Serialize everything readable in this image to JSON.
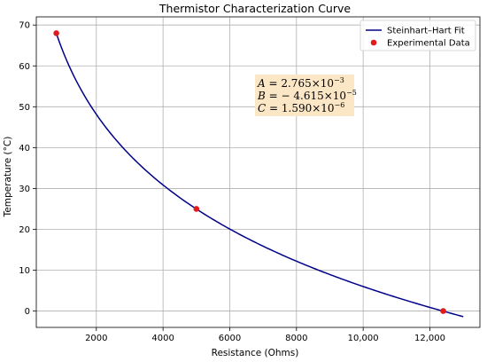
{
  "chart_data": {
    "type": "line",
    "title": "Thermistor Characterization Curve",
    "xlabel": "Resistance (Ohms)",
    "ylabel": "Temperature (°C)",
    "xlim": [
      200,
      13500
    ],
    "ylim": [
      -4,
      72
    ],
    "xticks": [
      2000,
      4000,
      6000,
      8000,
      10000,
      12000
    ],
    "xtick_labels": [
      "2000",
      "4000",
      "6000",
      "8000",
      "10,000",
      "12,000"
    ],
    "yticks": [
      0,
      10,
      20,
      30,
      40,
      50,
      60,
      70
    ],
    "ytick_labels": [
      "0",
      "10",
      "20",
      "30",
      "40",
      "50",
      "60",
      "70"
    ],
    "grid": true,
    "legend_position": "top-right",
    "series": [
      {
        "name": "Steinhart–Hart Fit",
        "kind": "line",
        "color": "#00008b",
        "model": "steinhart-hart",
        "coefficients": {
          "A": 0.002765,
          "B": -4.615e-05,
          "C": 1.59e-06
        },
        "x_range": [
          800,
          13000
        ]
      },
      {
        "name": "Experimental Data",
        "kind": "scatter",
        "color": "#e31a1c",
        "x": [
          800,
          5000,
          12400
        ],
        "y": [
          68,
          25,
          0
        ]
      }
    ],
    "annotation": {
      "lines": [
        {
          "lhs": "A",
          "mantissa": "= 2.765×10",
          "exponent": "−3"
        },
        {
          "lhs": "B",
          "mantissa": "= − 4.615×10",
          "exponent": "−5"
        },
        {
          "lhs": "C",
          "mantissa": "= 1.590×10",
          "exponent": "−6"
        }
      ],
      "background": "#fbe6c6"
    }
  }
}
